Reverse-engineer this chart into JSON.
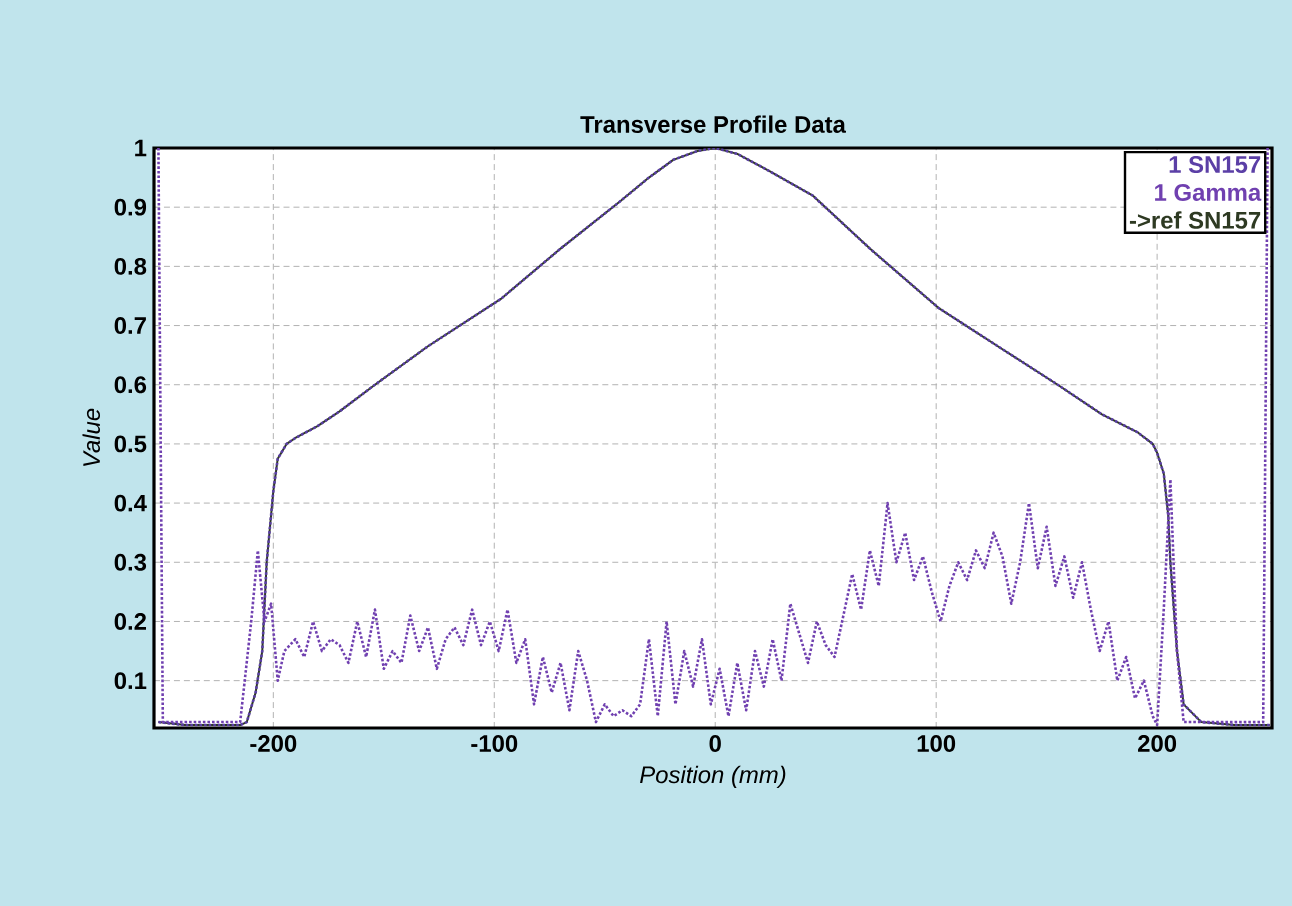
{
  "chart_data": {
    "type": "line",
    "title": "Transverse Profile Data",
    "xlabel": "Position (mm)",
    "ylabel": "Value",
    "xlim": [
      -254,
      252
    ],
    "ylim": [
      0.02,
      1
    ],
    "xticks": [
      -200,
      -100,
      0,
      100,
      200
    ],
    "yticks": [
      0.1,
      0.2,
      0.3,
      0.4,
      0.5,
      0.6,
      0.7,
      0.8,
      0.9,
      1
    ],
    "grid": true,
    "legend": "top right",
    "marker": "none",
    "series": [
      {
        "name": "->ref SN157",
        "color": "#2e3a22",
        "line_style": "solid",
        "x": [
          -252,
          -240,
          -225,
          -215,
          -212,
          -208,
          -205,
          -203,
          -200,
          -198,
          -194,
          -190,
          -180,
          -170,
          -154,
          -130,
          -97,
          -70,
          -43,
          -30,
          -19,
          -8,
          0,
          10,
          25,
          44,
          70,
          101,
          130,
          155,
          175,
          191,
          198,
          200,
          203,
          205,
          206,
          209,
          212,
          220,
          235,
          251
        ],
        "values": [
          0.03,
          0.025,
          0.025,
          0.025,
          0.03,
          0.08,
          0.15,
          0.3,
          0.42,
          0.475,
          0.5,
          0.51,
          0.53,
          0.555,
          0.6,
          0.665,
          0.745,
          0.83,
          0.91,
          0.95,
          0.98,
          0.995,
          1.0,
          0.99,
          0.96,
          0.92,
          0.83,
          0.73,
          0.66,
          0.6,
          0.55,
          0.52,
          0.5,
          0.485,
          0.45,
          0.38,
          0.3,
          0.15,
          0.06,
          0.03,
          0.025,
          0.025
        ]
      },
      {
        "name": "1 SN157",
        "color": "#5b3fa6",
        "line_style": "dotted",
        "x": [
          -252,
          -240,
          -225,
          -215,
          -212,
          -208,
          -205,
          -203,
          -200,
          -198,
          -194,
          -190,
          -180,
          -170,
          -154,
          -130,
          -97,
          -70,
          -43,
          -30,
          -19,
          -8,
          0,
          10,
          25,
          44,
          70,
          101,
          130,
          155,
          175,
          191,
          198,
          200,
          203,
          205,
          206,
          209,
          212,
          220,
          235,
          251
        ],
        "values": [
          0.03,
          0.025,
          0.025,
          0.025,
          0.03,
          0.08,
          0.15,
          0.3,
          0.42,
          0.475,
          0.5,
          0.51,
          0.53,
          0.555,
          0.6,
          0.665,
          0.745,
          0.83,
          0.91,
          0.95,
          0.98,
          0.995,
          1.0,
          0.99,
          0.96,
          0.92,
          0.83,
          0.73,
          0.66,
          0.6,
          0.55,
          0.52,
          0.5,
          0.485,
          0.45,
          0.38,
          0.3,
          0.15,
          0.06,
          0.03,
          0.025,
          0.025
        ]
      },
      {
        "name": "1 Gamma",
        "color": "#7040b0",
        "line_style": "dotted",
        "x": [
          -252,
          -250,
          -230,
          -215,
          -210,
          -207,
          -204,
          -201,
          -198,
          -195,
          -190,
          -186,
          -182,
          -178,
          -174,
          -170,
          -166,
          -162,
          -158,
          -154,
          -150,
          -146,
          -142,
          -138,
          -134,
          -130,
          -126,
          -122,
          -118,
          -114,
          -110,
          -106,
          -102,
          -98,
          -94,
          -90,
          -86,
          -82,
          -78,
          -74,
          -70,
          -66,
          -62,
          -58,
          -54,
          -50,
          -46,
          -42,
          -38,
          -34,
          -30,
          -26,
          -22,
          -18,
          -14,
          -10,
          -6,
          -2,
          2,
          6,
          10,
          14,
          18,
          22,
          26,
          30,
          34,
          38,
          42,
          46,
          50,
          54,
          58,
          62,
          66,
          70,
          74,
          78,
          82,
          86,
          90,
          94,
          98,
          102,
          106,
          110,
          114,
          118,
          122,
          126,
          130,
          134,
          138,
          142,
          146,
          150,
          154,
          158,
          162,
          166,
          170,
          174,
          178,
          182,
          186,
          190,
          194,
          198,
          200,
          203,
          206,
          209,
          212,
          248,
          250
        ],
        "values": [
          1.0,
          0.03,
          0.03,
          0.03,
          0.2,
          0.32,
          0.2,
          0.23,
          0.1,
          0.15,
          0.17,
          0.14,
          0.2,
          0.15,
          0.17,
          0.16,
          0.13,
          0.2,
          0.14,
          0.22,
          0.12,
          0.15,
          0.13,
          0.21,
          0.15,
          0.19,
          0.12,
          0.17,
          0.19,
          0.16,
          0.22,
          0.16,
          0.2,
          0.15,
          0.22,
          0.13,
          0.17,
          0.06,
          0.14,
          0.08,
          0.13,
          0.05,
          0.15,
          0.1,
          0.03,
          0.06,
          0.04,
          0.05,
          0.04,
          0.06,
          0.17,
          0.04,
          0.2,
          0.06,
          0.15,
          0.09,
          0.17,
          0.06,
          0.12,
          0.04,
          0.13,
          0.05,
          0.15,
          0.09,
          0.17,
          0.1,
          0.23,
          0.18,
          0.13,
          0.2,
          0.16,
          0.14,
          0.21,
          0.28,
          0.22,
          0.32,
          0.26,
          0.4,
          0.3,
          0.35,
          0.27,
          0.31,
          0.25,
          0.2,
          0.26,
          0.3,
          0.27,
          0.32,
          0.29,
          0.35,
          0.31,
          0.23,
          0.3,
          0.4,
          0.29,
          0.36,
          0.26,
          0.31,
          0.24,
          0.3,
          0.22,
          0.15,
          0.2,
          0.1,
          0.14,
          0.07,
          0.1,
          0.04,
          0.025,
          0.22,
          0.44,
          0.15,
          0.03,
          0.03,
          1.0
        ]
      }
    ]
  }
}
